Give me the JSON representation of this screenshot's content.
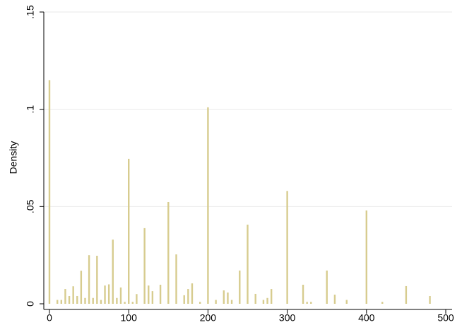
{
  "chart_data": {
    "type": "bar",
    "ylabel": "Density",
    "x": [
      0,
      10,
      15,
      20,
      25,
      30,
      35,
      40,
      45,
      50,
      55,
      60,
      65,
      70,
      75,
      80,
      85,
      90,
      95,
      100,
      105,
      110,
      120,
      125,
      130,
      140,
      150,
      160,
      170,
      175,
      180,
      190,
      200,
      210,
      220,
      225,
      230,
      240,
      250,
      260,
      270,
      275,
      280,
      300,
      320,
      325,
      330,
      350,
      360,
      375,
      400,
      420,
      450,
      480
    ],
    "values": [
      0.115,
      0.002,
      0.002,
      0.0076,
      0.004,
      0.009,
      0.004,
      0.017,
      0.003,
      0.025,
      0.003,
      0.0247,
      0.002,
      0.0094,
      0.01,
      0.033,
      0.003,
      0.0084,
      0.001,
      0.0745,
      0.001,
      0.005,
      0.0389,
      0.0094,
      0.0065,
      0.0098,
      0.0523,
      0.0254,
      0.0044,
      0.0076,
      0.0105,
      0.001,
      0.101,
      0.002,
      0.0069,
      0.0058,
      0.002,
      0.0171,
      0.0407,
      0.0051,
      0.002,
      0.003,
      0.0076,
      0.058,
      0.0098,
      0.001,
      0.001,
      0.0171,
      0.0047,
      0.002,
      0.048,
      0.001,
      0.0091,
      0.004
    ],
    "color": "#d7cc8f",
    "xlim": [
      0,
      500
    ],
    "xticks": [
      0,
      100,
      200,
      300,
      400,
      500
    ],
    "ylim": [
      0,
      0.15
    ],
    "yticks": [
      0,
      {
        "value": 0.05,
        "label": ".05"
      },
      {
        "value": 0.1,
        "label": ".1"
      },
      {
        "value": 0.15,
        "label": ".15"
      }
    ],
    "grid": true
  }
}
